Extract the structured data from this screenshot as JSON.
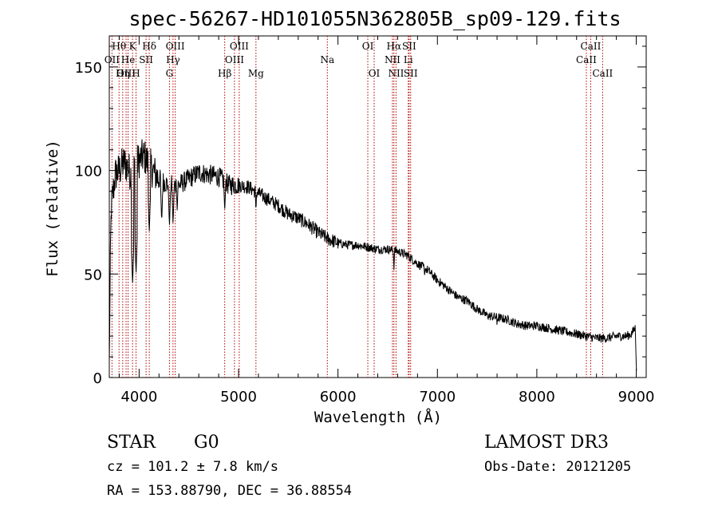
{
  "chart_data": {
    "type": "line",
    "title": "spec-56267-HD101055N362805B_sp09-129.fits",
    "xlabel": "Wavelength (Å)",
    "ylabel": "Flux (relative)",
    "xlim": [
      3700,
      9100
    ],
    "ylim": [
      0,
      165
    ],
    "x_ticks": [
      4000,
      5000,
      6000,
      7000,
      8000,
      9000
    ],
    "x_tick_labels": [
      "4000",
      "5000",
      "6000",
      "7000",
      "8000",
      "9000"
    ],
    "y_ticks": [
      0,
      50,
      100,
      150
    ],
    "y_tick_labels": [
      "0",
      "50",
      "100",
      "150"
    ],
    "series": [
      {
        "name": "spectrum",
        "envelope": [
          [
            3700,
            5
          ],
          [
            3705,
            30
          ],
          [
            3712,
            60
          ],
          [
            3720,
            82
          ],
          [
            3740,
            90
          ],
          [
            3760,
            98
          ],
          [
            3800,
            100
          ],
          [
            3850,
            104
          ],
          [
            3900,
            100
          ],
          [
            3930,
            97
          ],
          [
            3960,
            103
          ],
          [
            4000,
            105
          ],
          [
            4050,
            107
          ],
          [
            4100,
            103
          ],
          [
            4150,
            99
          ],
          [
            4200,
            96
          ],
          [
            4300,
            93
          ],
          [
            4400,
            93
          ],
          [
            4500,
            96
          ],
          [
            4600,
            99
          ],
          [
            4700,
            98
          ],
          [
            4800,
            97
          ],
          [
            4900,
            93
          ],
          [
            5000,
            93
          ],
          [
            5100,
            92
          ],
          [
            5200,
            89
          ],
          [
            5300,
            86
          ],
          [
            5400,
            83
          ],
          [
            5500,
            79
          ],
          [
            5600,
            77
          ],
          [
            5700,
            74
          ],
          [
            5800,
            70
          ],
          [
            5900,
            67
          ],
          [
            6000,
            65
          ],
          [
            6100,
            64
          ],
          [
            6200,
            64
          ],
          [
            6300,
            63
          ],
          [
            6400,
            62
          ],
          [
            6500,
            62
          ],
          [
            6600,
            61
          ],
          [
            6700,
            59
          ],
          [
            6800,
            55
          ],
          [
            6900,
            52
          ],
          [
            7000,
            47
          ],
          [
            7100,
            43
          ],
          [
            7200,
            39
          ],
          [
            7300,
            37
          ],
          [
            7400,
            33
          ],
          [
            7500,
            30
          ],
          [
            7600,
            29
          ],
          [
            7700,
            28
          ],
          [
            7800,
            26
          ],
          [
            7900,
            25
          ],
          [
            8000,
            25
          ],
          [
            8100,
            24
          ],
          [
            8200,
            23
          ],
          [
            8300,
            22
          ],
          [
            8400,
            21
          ],
          [
            8500,
            20
          ],
          [
            8600,
            19
          ],
          [
            8700,
            19
          ],
          [
            8800,
            20
          ],
          [
            8900,
            20
          ],
          [
            8950,
            21
          ],
          [
            8990,
            24
          ],
          [
            9000,
            8
          ],
          [
            9005,
            2
          ]
        ],
        "absorption_dips": [
          [
            3934,
            45
          ],
          [
            3969,
            50
          ],
          [
            4102,
            70
          ],
          [
            4227,
            75
          ],
          [
            4305,
            73
          ],
          [
            4341,
            74
          ],
          [
            4383,
            80
          ],
          [
            4861,
            80
          ],
          [
            5175,
            80
          ],
          [
            5270,
            82
          ],
          [
            5890,
            66
          ],
          [
            6563,
            52
          ],
          [
            6870,
            48
          ],
          [
            7600,
            24
          ]
        ]
      }
    ],
    "lines": [
      {
        "label": "Hθ",
        "x": 3798,
        "row": 1
      },
      {
        "label": "OII",
        "x": 3727,
        "row": 2
      },
      {
        "label": "OIII",
        "x": 3869,
        "row": 3
      },
      {
        "label": "He",
        "x": 3889,
        "row": 2
      },
      {
        "label": "Hη",
        "x": 3835,
        "row": 3
      },
      {
        "label": "K",
        "x": 3934,
        "row": 1
      },
      {
        "label": "SII",
        "x": 4070,
        "row": 2
      },
      {
        "label": "H",
        "x": 3969,
        "row": 3
      },
      {
        "label": "Hδ",
        "x": 4102,
        "row": 1
      },
      {
        "label": "OIII",
        "x": 4363,
        "row": 1
      },
      {
        "label": "Hγ",
        "x": 4341,
        "row": 2
      },
      {
        "label": "G",
        "x": 4305,
        "row": 3
      },
      {
        "label": "Hβ",
        "x": 4861,
        "row": 3
      },
      {
        "label": "OIII",
        "x": 5007,
        "row": 1
      },
      {
        "label": "OIII",
        "x": 4959,
        "row": 2
      },
      {
        "label": "Mg",
        "x": 5175,
        "row": 3
      },
      {
        "label": "Na",
        "x": 5893,
        "row": 2
      },
      {
        "label": "OI",
        "x": 6300,
        "row": 1
      },
      {
        "label": "OI",
        "x": 6364,
        "row": 3
      },
      {
        "label": "Hα",
        "x": 6563,
        "row": 1
      },
      {
        "label": "NII",
        "x": 6548,
        "row": 2
      },
      {
        "label": "NII",
        "x": 6584,
        "row": 3
      },
      {
        "label": "SII",
        "x": 6716,
        "row": 1
      },
      {
        "label": "Li",
        "x": 6707,
        "row": 2
      },
      {
        "label": "SII",
        "x": 6731,
        "row": 3
      },
      {
        "label": "CaII",
        "x": 8542,
        "row": 1
      },
      {
        "label": "CaII",
        "x": 8498,
        "row": 2
      },
      {
        "label": "CaII",
        "x": 8662,
        "row": 3
      }
    ]
  },
  "info": {
    "class_label": "STAR",
    "subclass": "G0",
    "cz": "cz = 101.2 ± 7.8 km/s",
    "coords": "RA = 153.88790, DEC =  36.88554",
    "survey": "LAMOST DR3",
    "obs_date": "Obs-Date: 20121205"
  },
  "colors": {
    "line_marker": "#b00000",
    "spectrum": "#000000",
    "axis": "#000000"
  }
}
